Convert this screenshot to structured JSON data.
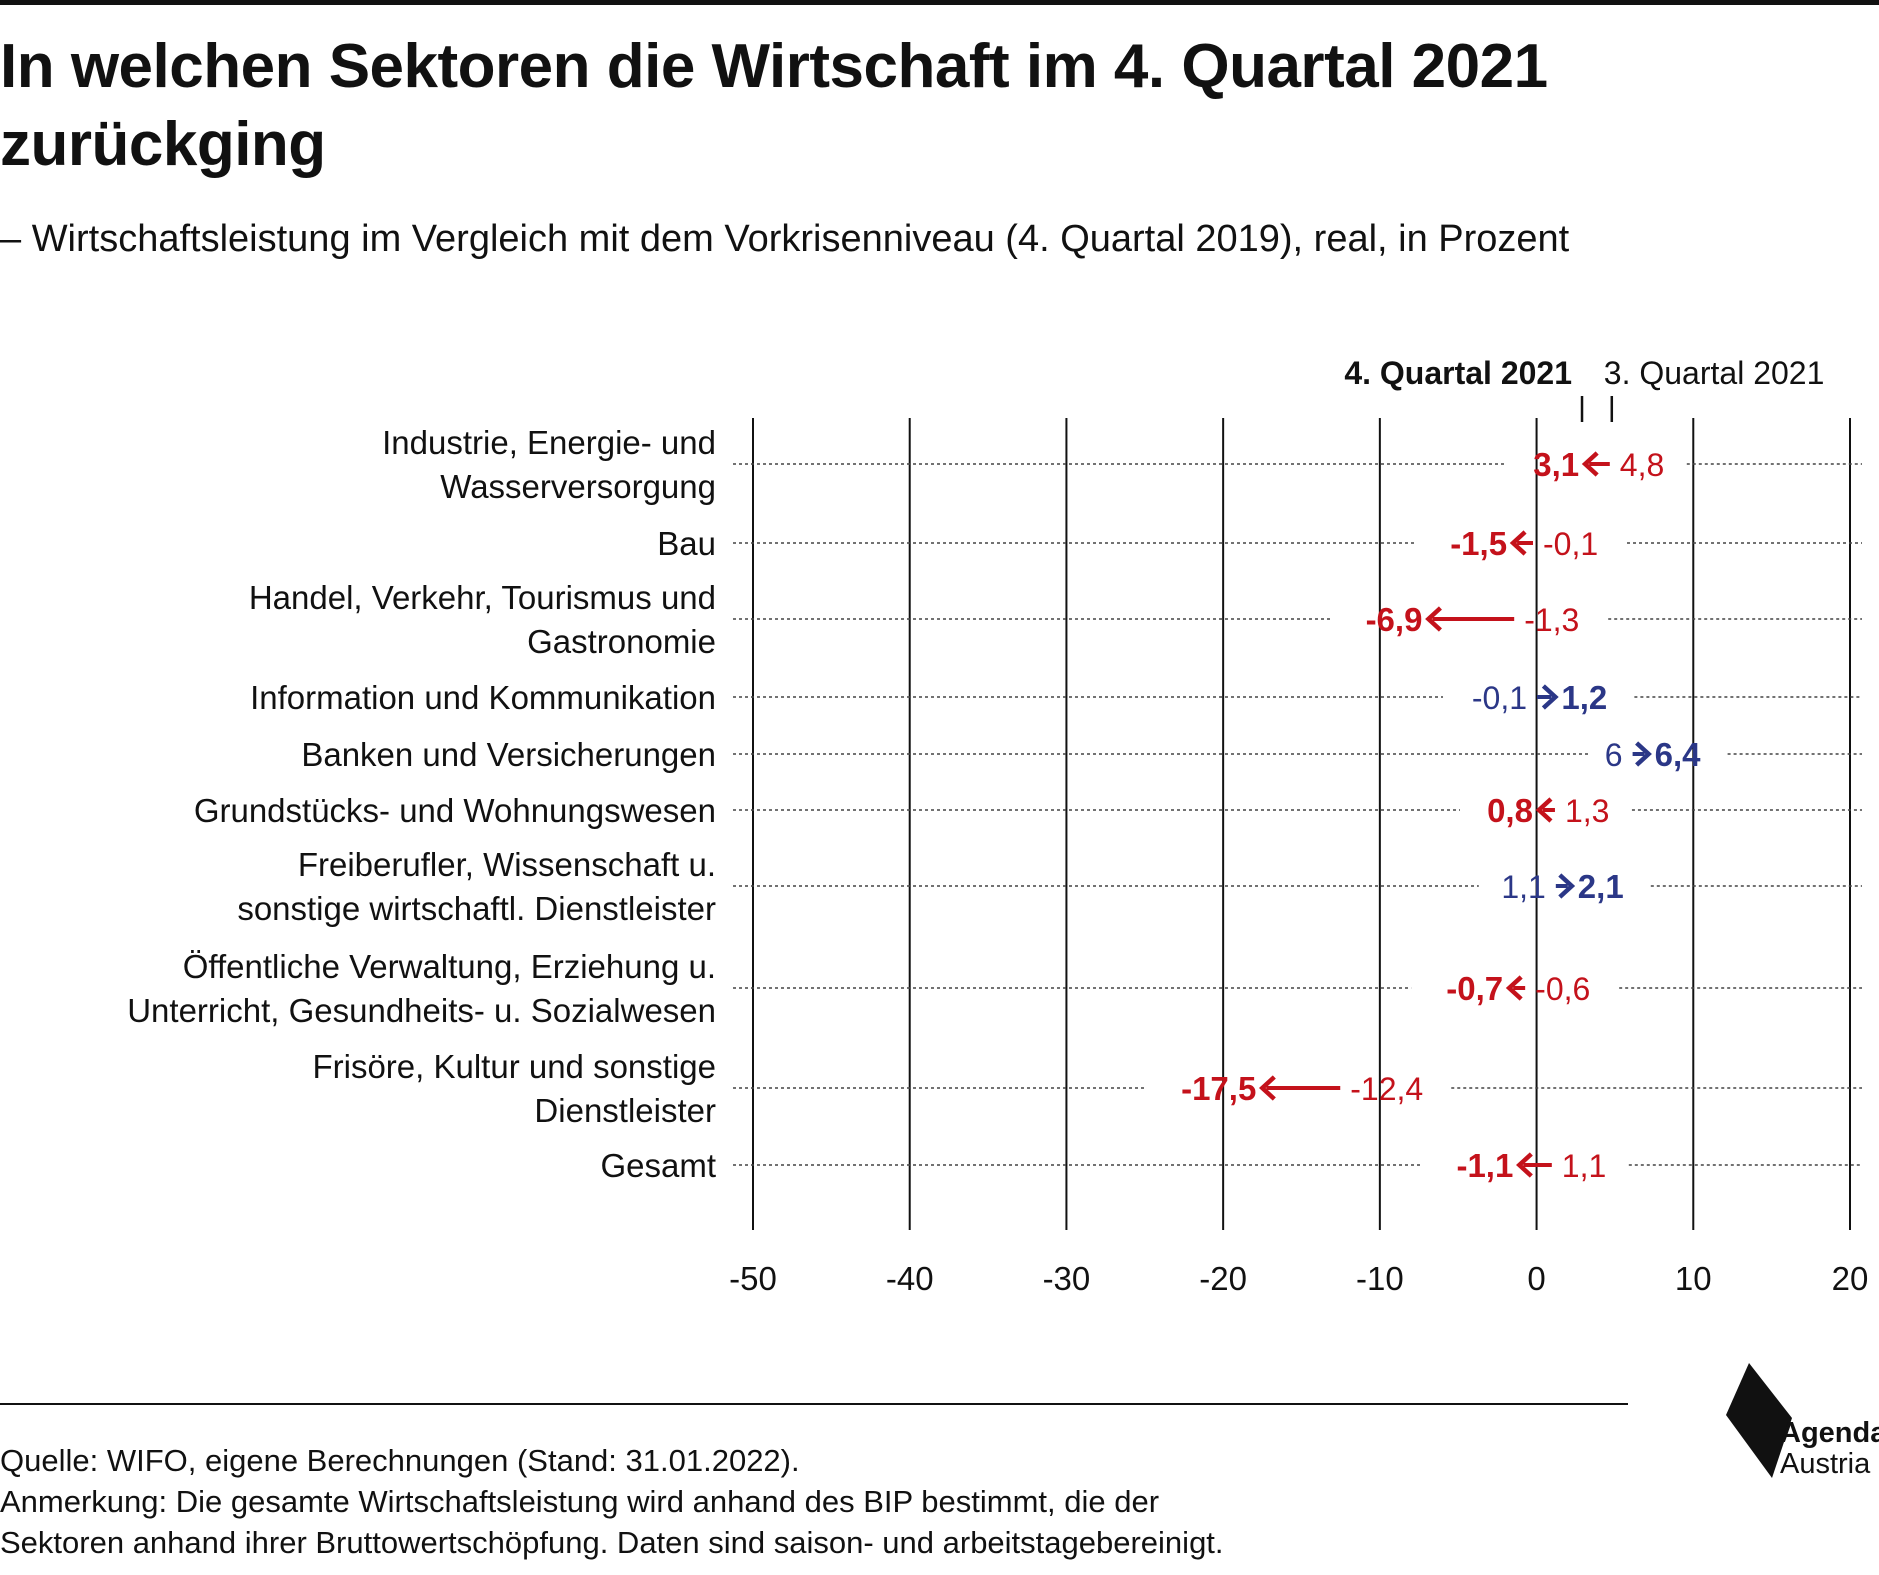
{
  "title": "In welchen Sektoren die Wirtschaft im 4. Quartal 2021 zurückging",
  "subtitle": "– Wirtschaftsleistung im Vergleich mit dem Vorkrisenniveau (4. Quartal 2019), real, in Prozent",
  "colors": {
    "decline": "#c4121b",
    "increase": "#2b3787",
    "text": "#111111"
  },
  "chart_data": {
    "type": "arrow-dot",
    "xlim": [
      -50,
      20
    ],
    "xticks": [
      -50,
      -40,
      -30,
      -20,
      -10,
      0,
      10,
      20
    ],
    "grid": true,
    "legend": {
      "q4": "4. Quartal 2021",
      "q3": "3. Quartal 2021",
      "position": "top-right"
    },
    "series": [
      {
        "label_lines": [
          "Industrie, Energie- und",
          "Wasserversorgung"
        ],
        "q3": 4.8,
        "q4": 3.1,
        "q3_label": "4,8",
        "q4_label": "3,1"
      },
      {
        "label_lines": [
          "Bau"
        ],
        "q3": -0.1,
        "q4": -1.5,
        "q3_label": "-0,1",
        "q4_label": "-1,5"
      },
      {
        "label_lines": [
          "Handel, Verkehr, Tourismus und",
          "Gastronomie"
        ],
        "q3": -1.3,
        "q4": -6.9,
        "q3_label": "-1,3",
        "q4_label": "-6,9"
      },
      {
        "label_lines": [
          "Information und Kommunikation"
        ],
        "q3": -0.1,
        "q4": 1.2,
        "q3_label": "-0,1",
        "q4_label": "1,2"
      },
      {
        "label_lines": [
          "Banken und Versicherungen"
        ],
        "q3": 6.0,
        "q4": 6.4,
        "q3_label": "6",
        "q4_label": "6,4"
      },
      {
        "label_lines": [
          "Grundstücks- und Wohnungswesen"
        ],
        "q3": 1.3,
        "q4": 0.8,
        "q3_label": "1,3",
        "q4_label": "0,8"
      },
      {
        "label_lines": [
          "Freiberufler, Wissenschaft u.",
          "sonstige wirtschaftl. Dienstleister"
        ],
        "q3": 1.1,
        "q4": 2.1,
        "q3_label": "1,1",
        "q4_label": "2,1"
      },
      {
        "label_lines": [
          "Öffentliche Verwaltung, Erziehung u.",
          "Unterricht, Gesundheits- u. Sozialwesen"
        ],
        "q3": -0.6,
        "q4": -0.7,
        "q3_label": "-0,6",
        "q4_label": "-0,7"
      },
      {
        "label_lines": [
          "Frisöre, Kultur und sonstige",
          "Dienstleister"
        ],
        "q3": -12.4,
        "q4": -17.5,
        "q3_label": "-12,4",
        "q4_label": "-17,5"
      },
      {
        "label_lines": [
          "Gesamt"
        ],
        "q3": 1.1,
        "q4": -1.1,
        "q3_label": "1,1",
        "q4_label": "-1,1"
      }
    ]
  },
  "footer": {
    "source": "Quelle: WIFO, eigene Berechnungen (Stand: 31.01.2022).",
    "note_line1": "Anmerkung: Die gesamte Wirtschaftsleistung wird anhand des BIP bestimmt, die der",
    "note_line2": "Sektoren anhand ihrer Bruttowertschöpfung. Daten sind saison- und arbeitstagebereinigt."
  },
  "logo": {
    "line1": "Agenda",
    "line2": "Austria"
  }
}
